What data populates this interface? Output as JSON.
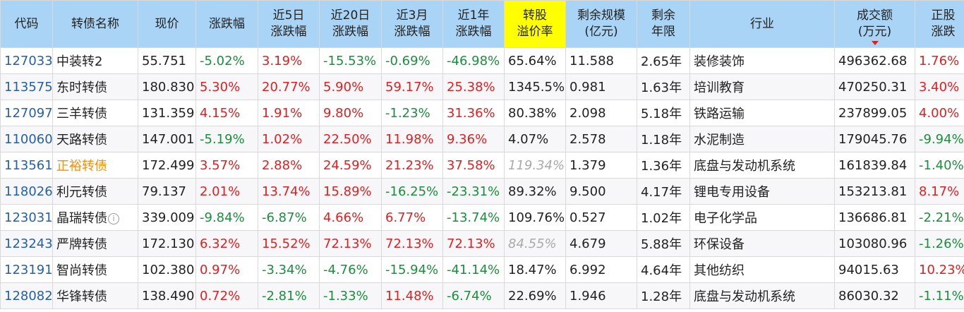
{
  "headers": [
    {
      "key": "code",
      "lines": [
        "代码"
      ]
    },
    {
      "key": "name",
      "lines": [
        "转债名称"
      ]
    },
    {
      "key": "price",
      "lines": [
        "现价"
      ]
    },
    {
      "key": "change",
      "lines": [
        "涨跌幅"
      ]
    },
    {
      "key": "chg5d",
      "lines": [
        "近5日",
        "涨跌幅"
      ]
    },
    {
      "key": "chg20d",
      "lines": [
        "近20日",
        "涨跌幅"
      ]
    },
    {
      "key": "chg3m",
      "lines": [
        "近3月",
        "涨跌幅"
      ]
    },
    {
      "key": "chg1y",
      "lines": [
        "近1年",
        "涨跌幅"
      ]
    },
    {
      "key": "premium",
      "lines": [
        "转股",
        "溢价率"
      ],
      "highlight": true
    },
    {
      "key": "scale",
      "lines": [
        "剩余规模",
        "(亿元)"
      ]
    },
    {
      "key": "years",
      "lines": [
        "剩余",
        "年限"
      ]
    },
    {
      "key": "industry",
      "lines": [
        "行业"
      ]
    },
    {
      "key": "volume",
      "lines": [
        "成交额",
        "(万元)"
      ],
      "sorted_desc": true
    },
    {
      "key": "stockchg",
      "lines": [
        "正股",
        "涨跌"
      ]
    }
  ],
  "rows": [
    {
      "code": "127033",
      "name": "中装转2",
      "price": "55.751",
      "change": "-5.02%",
      "chg5d": "3.19%",
      "chg20d": "-15.53%",
      "chg3m": "-0.69%",
      "chg1y": "-46.98%",
      "premium": "65.64%",
      "scale": "11.588",
      "years": "2.65年",
      "industry": "装修装饰",
      "volume": "496362.68",
      "stockchg": "1.76%"
    },
    {
      "code": "113575",
      "name": "东时转债",
      "price": "180.830",
      "change": "5.30%",
      "chg5d": "20.77%",
      "chg20d": "5.90%",
      "chg3m": "59.17%",
      "chg1y": "25.38%",
      "premium": "1345.5%",
      "scale": "0.981",
      "years": "1.63年",
      "industry": "培训教育",
      "volume": "470250.31",
      "stockchg": "3.40%"
    },
    {
      "code": "127097",
      "name": "三羊转债",
      "price": "131.359",
      "change": "4.15%",
      "chg5d": "1.91%",
      "chg20d": "9.80%",
      "chg3m": "-1.23%",
      "chg1y": "31.36%",
      "premium": "80.38%",
      "scale": "2.098",
      "years": "5.18年",
      "industry": "铁路运输",
      "volume": "237899.05",
      "stockchg": "4.00%"
    },
    {
      "code": "110060",
      "name": "天路转债",
      "price": "147.001",
      "change": "-5.19%",
      "chg5d": "1.02%",
      "chg20d": "22.50%",
      "chg3m": "11.98%",
      "chg1y": "9.36%",
      "premium": "4.07%",
      "scale": "2.578",
      "years": "1.18年",
      "industry": "水泥制造",
      "volume": "179045.76",
      "stockchg": "-9.94%"
    },
    {
      "code": "113561",
      "name": "正裕转债",
      "name_highlight": true,
      "price": "172.499",
      "change": "3.57%",
      "chg5d": "2.88%",
      "chg20d": "24.59%",
      "chg3m": "21.23%",
      "chg1y": "37.58%",
      "premium": "119.34%",
      "premium_muted": true,
      "scale": "1.379",
      "years": "1.36年",
      "industry": "底盘与发动机系统",
      "volume": "161839.84",
      "stockchg": "-1.40%"
    },
    {
      "code": "118026",
      "name": "利元转债",
      "price": "79.137",
      "change": "2.01%",
      "chg5d": "13.74%",
      "chg20d": "15.89%",
      "chg3m": "-16.25%",
      "chg1y": "-23.31%",
      "premium": "89.32%",
      "scale": "9.500",
      "years": "4.17年",
      "industry": "锂电专用设备",
      "volume": "153213.81",
      "stockchg": "8.17%"
    },
    {
      "code": "123031",
      "name": "晶瑞转债",
      "name_info": true,
      "price": "339.009",
      "change": "-9.84%",
      "chg5d": "-6.87%",
      "chg20d": "4.66%",
      "chg3m": "6.77%",
      "chg1y": "-13.74%",
      "premium": "109.76%",
      "scale": "0.527",
      "years": "1.02年",
      "industry": "电子化学品",
      "volume": "136686.81",
      "stockchg": "-2.21%"
    },
    {
      "code": "123243",
      "name": "严牌转债",
      "price": "172.130",
      "change": "6.32%",
      "chg5d": "15.52%",
      "chg20d": "72.13%",
      "chg3m": "72.13%",
      "chg1y": "72.13%",
      "premium": "84.55%",
      "premium_muted": true,
      "scale": "4.679",
      "years": "5.88年",
      "industry": "环保设备",
      "volume": "103080.96",
      "stockchg": "-1.26%"
    },
    {
      "code": "123191",
      "name": "智尚转债",
      "price": "102.380",
      "change": "0.97%",
      "chg5d": "-3.34%",
      "chg20d": "-4.76%",
      "chg3m": "-15.94%",
      "chg1y": "-41.14%",
      "premium": "18.47%",
      "scale": "6.992",
      "years": "4.64年",
      "industry": "其他纺织",
      "volume": "94015.63",
      "stockchg": "10.23%"
    },
    {
      "code": "128082",
      "name": "华锋转债",
      "price": "138.490",
      "change": "0.72%",
      "chg5d": "-2.81%",
      "chg20d": "-1.33%",
      "chg3m": "11.48%",
      "chg1y": "-6.74%",
      "premium": "22.69%",
      "scale": "1.946",
      "years": "1.28年",
      "industry": "底盘与发动机系统",
      "volume": "86030.32",
      "stockchg": "-1.11%"
    }
  ],
  "colors": {
    "header_bg": "#a9d4f5",
    "highlight_header": "#ffff00",
    "up": "#e02020",
    "down": "#1a8f3c",
    "code": "#2460a7",
    "orange_name": "#ff8c00"
  },
  "icons": {
    "sort": "sort-desc-icon",
    "info": "info-icon"
  }
}
